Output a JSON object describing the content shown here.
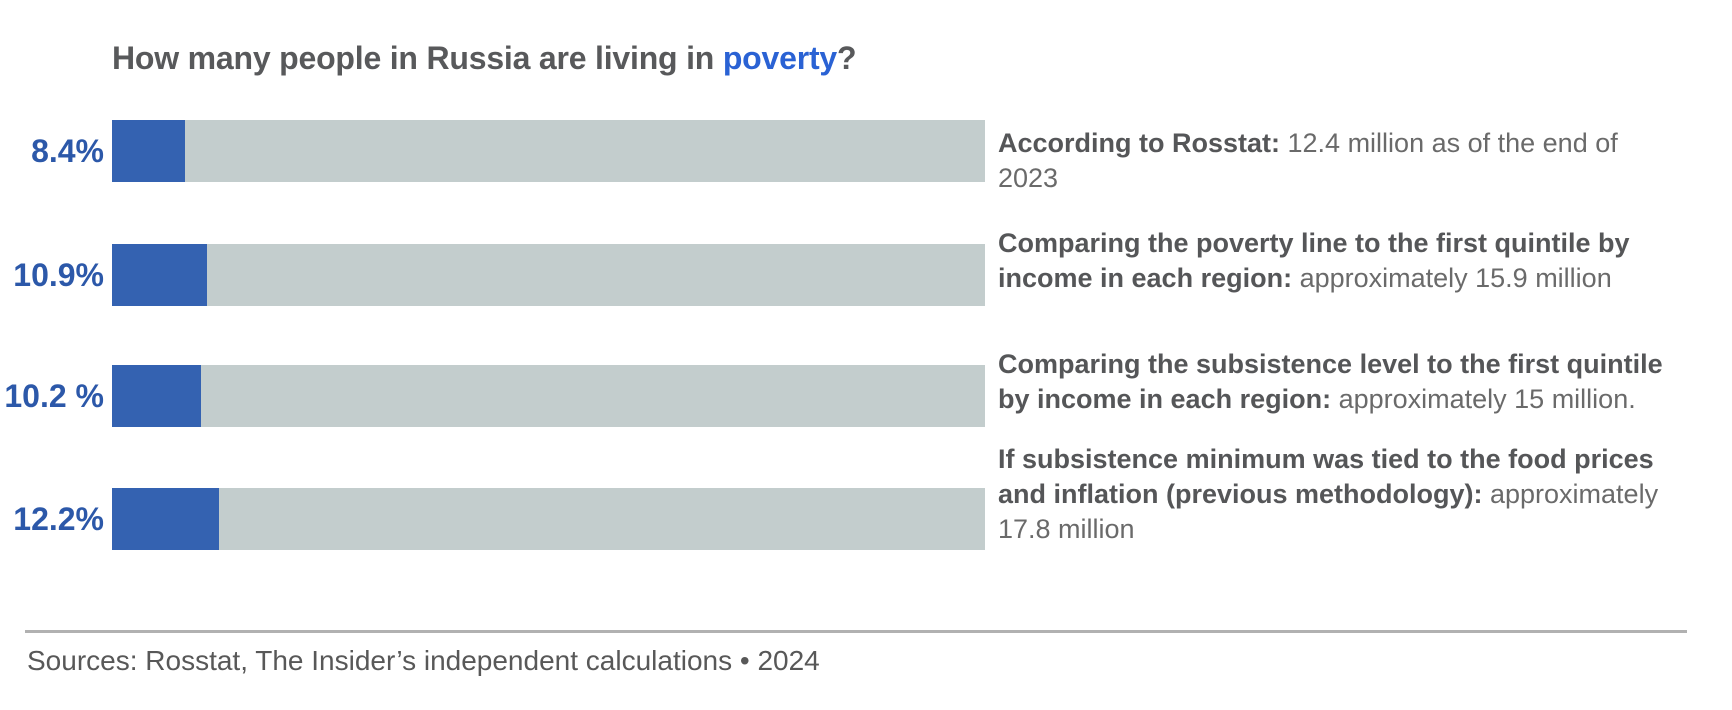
{
  "title": {
    "prefix": "How many people in Russia are living in ",
    "highlight": "poverty",
    "suffix": "?"
  },
  "rows": [
    {
      "pct_label": "8.4%",
      "value": 8.4,
      "desc_bold": "According to Rosstat:",
      "desc_rest": " 12.4 million as of the end of 2023"
    },
    {
      "pct_label": "10.9%",
      "value": 10.9,
      "desc_bold": "Comparing the poverty line to the first quintile by income in each region:",
      "desc_rest": " approximately 15.9 million"
    },
    {
      "pct_label": "10.2 %",
      "value": 10.2,
      "desc_bold": "Comparing the subsistence level to the first quintile by income in each region:",
      "desc_rest": " approximately 15 million."
    },
    {
      "pct_label": "12.2%",
      "value": 12.2,
      "desc_bold": "If subsistence minimum was tied to the food prices and inflation (previous methodology):",
      "desc_rest": " approximately 17.8 million"
    }
  ],
  "footer": {
    "source_line": "Sources: Rosstat, The Insider’s independent calculations • 2024"
  },
  "colors": {
    "bar_fill": "#3462b1",
    "bar_track": "#c3cdcd",
    "pct_label": "#2c58a9",
    "title_text": "#58595b",
    "title_highlight": "#2a62d4",
    "annotation_bold": "#555658",
    "annotation_regular": "#6a6a6a",
    "divider": "#b1b1b1",
    "source_text": "#585858",
    "background": "#ffffff"
  },
  "chart_data": {
    "type": "bar",
    "orientation": "horizontal",
    "title": "How many people in Russia are living in poverty?",
    "categories": [
      "According to Rosstat",
      "Comparing the poverty line to the first quintile by income in each region",
      "Comparing the subsistence level to the first quintile by income in each region",
      "If subsistence minimum was tied to the food prices and inflation (previous methodology)"
    ],
    "values": [
      8.4,
      10.9,
      10.2,
      12.2
    ],
    "value_labels": [
      "8.4%",
      "10.9%",
      "10.2 %",
      "12.2%"
    ],
    "people_millions": [
      12.4,
      15.9,
      15.0,
      17.8
    ],
    "annotations": [
      "According to Rosstat: 12.4 million as of the end of 2023",
      "Comparing the poverty line to the first quintile by income in each region: approximately 15.9 million",
      "Comparing the subsistence level to the first quintile by income in each region: approximately 15 million.",
      "If subsistence minimum was tied to the food prices and inflation (previous methodology): approximately 17.8 million"
    ],
    "xlabel": "",
    "ylabel": "",
    "xlim": [
      0,
      100
    ],
    "unit": "percent of population",
    "grid": false,
    "legend": false,
    "source": "Sources: Rosstat, The Insider’s independent calculations • 2024",
    "year": "2024"
  }
}
